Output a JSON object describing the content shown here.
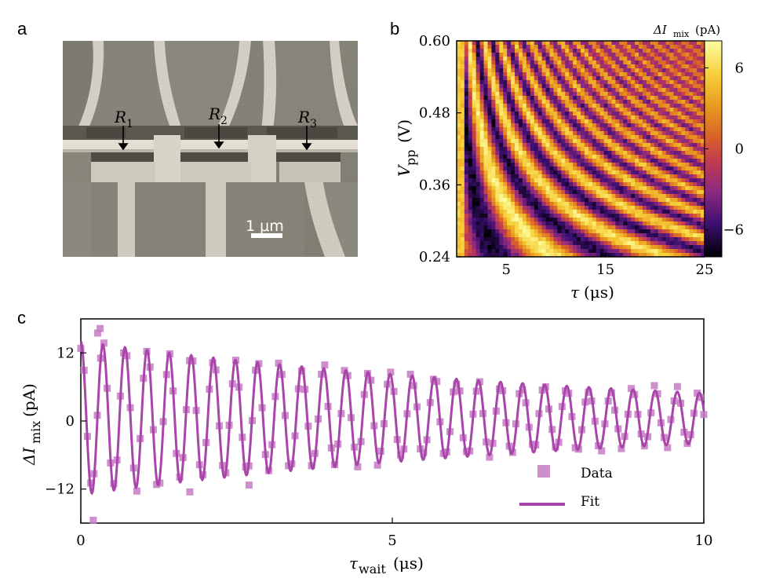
{
  "figure": {
    "panels": {
      "a": "a",
      "b": "b",
      "c": "c"
    }
  },
  "panel_a": {
    "resistor_labels": [
      "R",
      "R",
      "R"
    ],
    "resistor_subscripts": [
      "1",
      "2",
      "3"
    ],
    "scalebar_label": "1 μm"
  },
  "chart_data": [
    {
      "type": "heatmap",
      "panel": "b",
      "xlabel_main": "τ",
      "xlabel_unit": "(μs)",
      "ylabel_main": "V",
      "ylabel_sub": "pp",
      "ylabel_unit": "(V)",
      "xlim": [
        0,
        25
      ],
      "ylim": [
        0.24,
        0.6
      ],
      "x_ticks": [
        "5",
        "15",
        "25"
      ],
      "x_tick_values": [
        5,
        15,
        25
      ],
      "y_ticks": [
        "0.24",
        "0.36",
        "0.48",
        "0.60"
      ],
      "y_tick_values": [
        0.24,
        0.36,
        0.48,
        0.6
      ],
      "colorbar": {
        "label_main": "ΔI",
        "label_sub": "mix",
        "label_unit": "(pA)",
        "ticks": [
          "6",
          "0",
          "−6"
        ],
        "tick_values": [
          6,
          0,
          -6
        ],
        "range": [
          -8,
          8
        ]
      },
      "model": "dark bands where τ·V_pp² ≈ constant (chevron oscillation)"
    },
    {
      "type": "scatter",
      "panel": "c",
      "xlabel_main": "τ",
      "xlabel_sub": "wait",
      "xlabel_unit": "(μs)",
      "ylabel_main": "ΔI",
      "ylabel_sub": "mix",
      "ylabel_unit": "(pA)",
      "xlim": [
        0,
        10
      ],
      "ylim": [
        -18,
        18
      ],
      "x_ticks": [
        "0",
        "5",
        "10"
      ],
      "x_tick_values": [
        0,
        5,
        10
      ],
      "y_ticks": [
        "12",
        "0",
        "−12"
      ],
      "y_tick_values": [
        12,
        0,
        -12
      ],
      "legend": {
        "data": "Data",
        "fit": "Fit",
        "position": "lower-right"
      },
      "fit": {
        "form": "A·exp(-t/T)·cos(2πf t) + offset",
        "amplitude": 13.5,
        "decay_time_us": 9.0,
        "frequency_MHz": 2.82,
        "offset": 0.5
      },
      "data_points": {
        "count": 190,
        "x_range": [
          0.0,
          10.0
        ],
        "noise_pA": 1.2,
        "outliers": [
          {
            "x": 0.2,
            "y": -17.5
          },
          {
            "x": 0.27,
            "y": 15.5
          },
          {
            "x": 0.31,
            "y": 16.3
          },
          {
            "x": 1.75,
            "y": -12.5
          },
          {
            "x": 2.7,
            "y": -11.3
          }
        ]
      }
    }
  ],
  "colors": {
    "fit": "#a845a8",
    "data": "#c77ac6"
  }
}
